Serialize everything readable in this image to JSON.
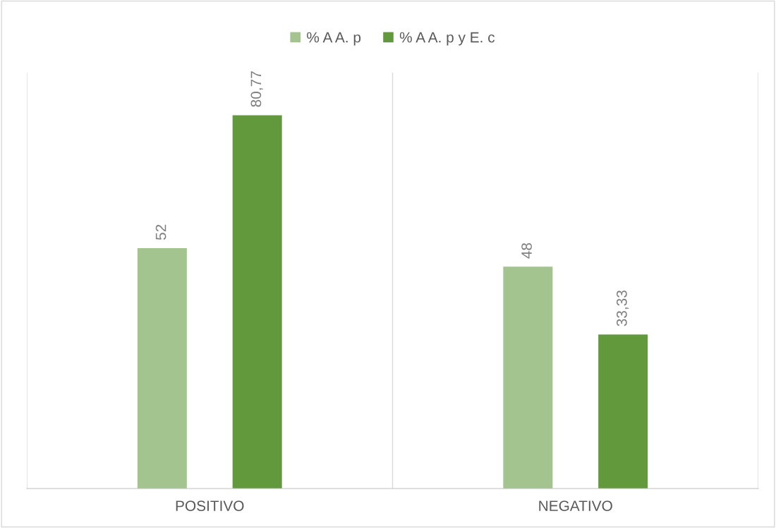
{
  "chart_data": {
    "type": "bar",
    "categories": [
      "POSITIVO",
      "NEGATIVO"
    ],
    "series": [
      {
        "name": "% A A. p",
        "color": "#a3c48f",
        "values": [
          52,
          48
        ],
        "value_labels": [
          "52",
          "48"
        ]
      },
      {
        "name": "% A A. p y E. c",
        "color": "#63993d",
        "values": [
          80.77,
          33.33
        ],
        "value_labels": [
          "80,77",
          "33,33"
        ]
      }
    ],
    "ylim": [
      0,
      90
    ],
    "grid": "x",
    "legend": "top",
    "tick_labels": "x"
  }
}
